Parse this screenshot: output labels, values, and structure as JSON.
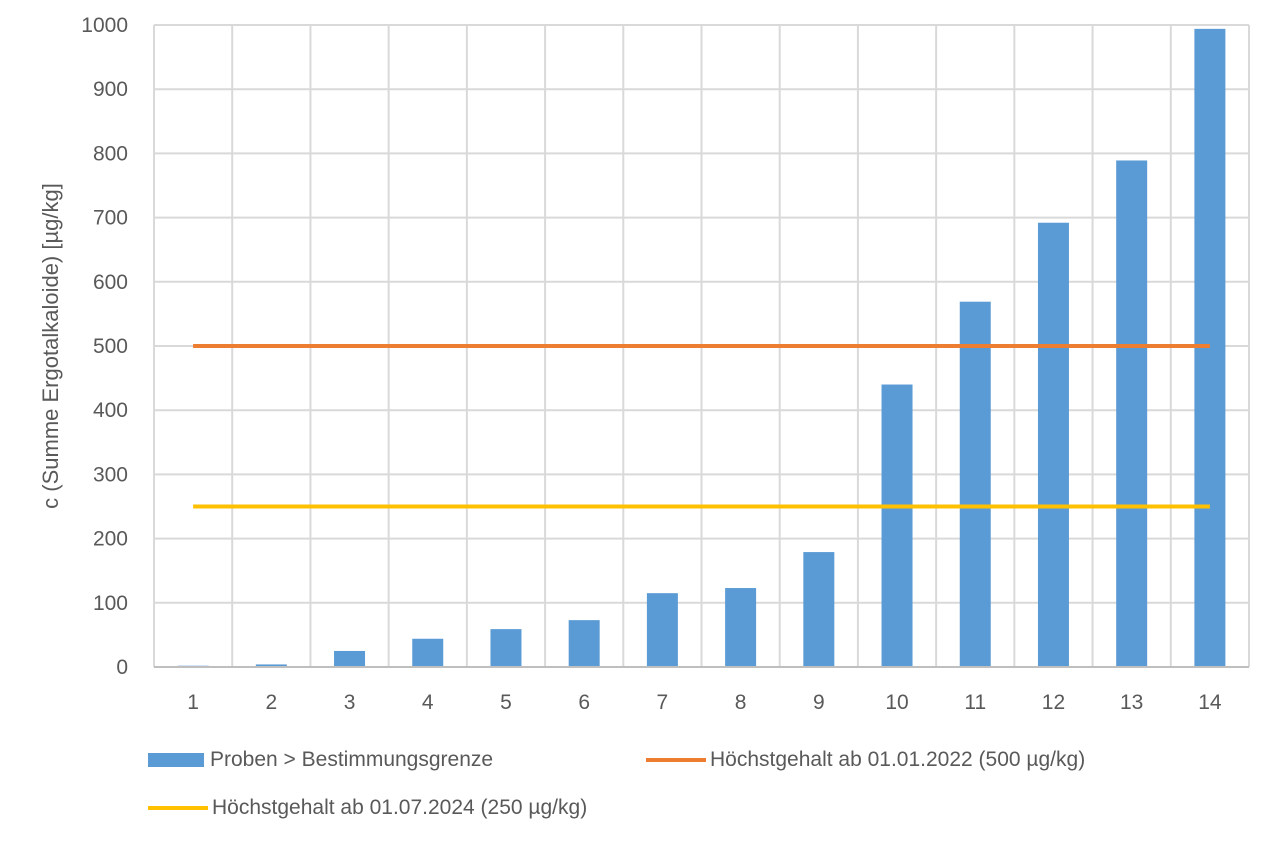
{
  "chart_data": {
    "type": "bar",
    "title": "",
    "xlabel": "",
    "ylabel": "c (Summe Ergotalkaloide) [µg/kg]",
    "ylim": [
      0,
      1000
    ],
    "yticks": [
      0,
      100,
      200,
      300,
      400,
      500,
      600,
      700,
      800,
      900,
      1000
    ],
    "grid": true,
    "legend_position": "bottom",
    "categories": [
      "1",
      "2",
      "3",
      "4",
      "5",
      "6",
      "7",
      "8",
      "9",
      "10",
      "11",
      "12",
      "13",
      "14"
    ],
    "series": [
      {
        "name": "Proben > Bestimmungsgrenze",
        "type": "bar",
        "color": "#5B9BD5",
        "values": [
          2,
          4,
          25,
          44,
          59,
          73,
          115,
          123,
          179,
          440,
          569,
          692,
          789,
          994
        ]
      },
      {
        "name": "Höchstgehalt ab 01.01.2022 (500 µg/kg)",
        "type": "line",
        "color": "#ED7D31",
        "values": [
          500,
          500,
          500,
          500,
          500,
          500,
          500,
          500,
          500,
          500,
          500,
          500,
          500,
          500
        ]
      },
      {
        "name": "Höchstgehalt ab 01.07.2024 (250 µg/kg)",
        "type": "line",
        "color": "#FFC000",
        "values": [
          250,
          250,
          250,
          250,
          250,
          250,
          250,
          250,
          250,
          250,
          250,
          250,
          250,
          250
        ]
      }
    ]
  },
  "legend": {
    "items": [
      {
        "label": "Proben > Bestimmungsgrenze",
        "color": "#5B9BD5"
      },
      {
        "label": "Höchstgehalt ab 01.01.2022 (500 µg/kg)",
        "color": "#ED7D31"
      },
      {
        "label": "Höchstgehalt ab 01.07.2024 (250 µg/kg)",
        "color": "#FFC000"
      }
    ]
  }
}
